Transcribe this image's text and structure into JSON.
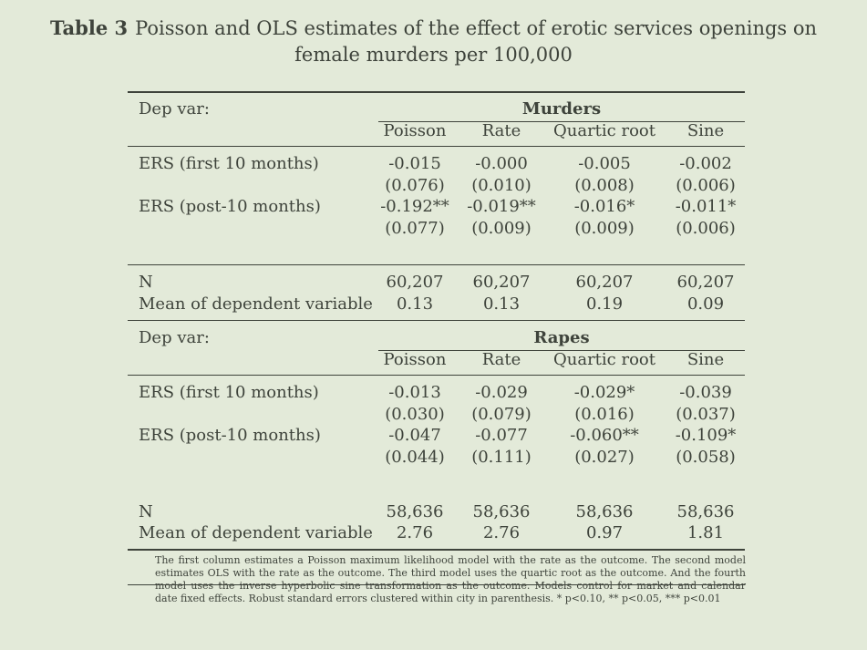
{
  "caption": {
    "label": "Table 3",
    "text": "Poisson and OLS estimates of the effect of erotic services openings on female murders per 100,000"
  },
  "panels": [
    {
      "dep_var_label": "Dep var:",
      "group_title": "Murders",
      "columns": [
        "Poisson",
        "Rate",
        "Quartic root",
        "Sine"
      ],
      "rows": [
        {
          "label": "ERS (first 10 months)",
          "coef": [
            "-0.015",
            "-0.000",
            "-0.005",
            "-0.002"
          ],
          "se": [
            "(0.076)",
            "(0.010)",
            "(0.008)",
            "(0.006)"
          ]
        },
        {
          "label": "ERS (post-10 months)",
          "coef": [
            "-0.192**",
            "-0.019**",
            "-0.016*",
            "-0.011*"
          ],
          "se": [
            "(0.077)",
            "(0.009)",
            "(0.009)",
            "(0.006)"
          ]
        }
      ],
      "n_label": "N",
      "n": [
        "60,207",
        "60,207",
        "60,207",
        "60,207"
      ],
      "mean_label": "Mean of dependent variable",
      "mean": [
        "0.13",
        "0.13",
        "0.19",
        "0.09"
      ]
    },
    {
      "dep_var_label": "Dep var:",
      "group_title": "Rapes",
      "columns": [
        "Poisson",
        "Rate",
        "Quartic root",
        "Sine"
      ],
      "rows": [
        {
          "label": "ERS (first 10 months)",
          "coef": [
            "-0.013",
            "-0.029",
            "-0.029*",
            "-0.039"
          ],
          "se": [
            "(0.030)",
            "(0.079)",
            "(0.016)",
            "(0.037)"
          ]
        },
        {
          "label": "ERS (post-10 months)",
          "coef": [
            "-0.047",
            "-0.077",
            "-0.060**",
            "-0.109*"
          ],
          "se": [
            "(0.044)",
            "(0.111)",
            "(0.027)",
            "(0.058)"
          ]
        }
      ],
      "n_label": "N",
      "n": [
        "58,636",
        "58,636",
        "58,636",
        "58,636"
      ],
      "mean_label": "Mean of dependent variable",
      "mean": [
        "2.76",
        "2.76",
        "0.97",
        "1.81"
      ]
    }
  ],
  "notes": "The first column estimates a Poisson maximum likelihood model with the rate as the outcome. The second model estimates OLS with the rate as the outcome. The third model uses the quartic root as the outcome. And the fourth model uses the inverse hyperbolic sine transformation as the outcome. Models control for market and calendar date fixed effects. Robust standard errors clustered within city in parenthesis. * p<0.10, ** p<0.05, *** p<0.01"
}
